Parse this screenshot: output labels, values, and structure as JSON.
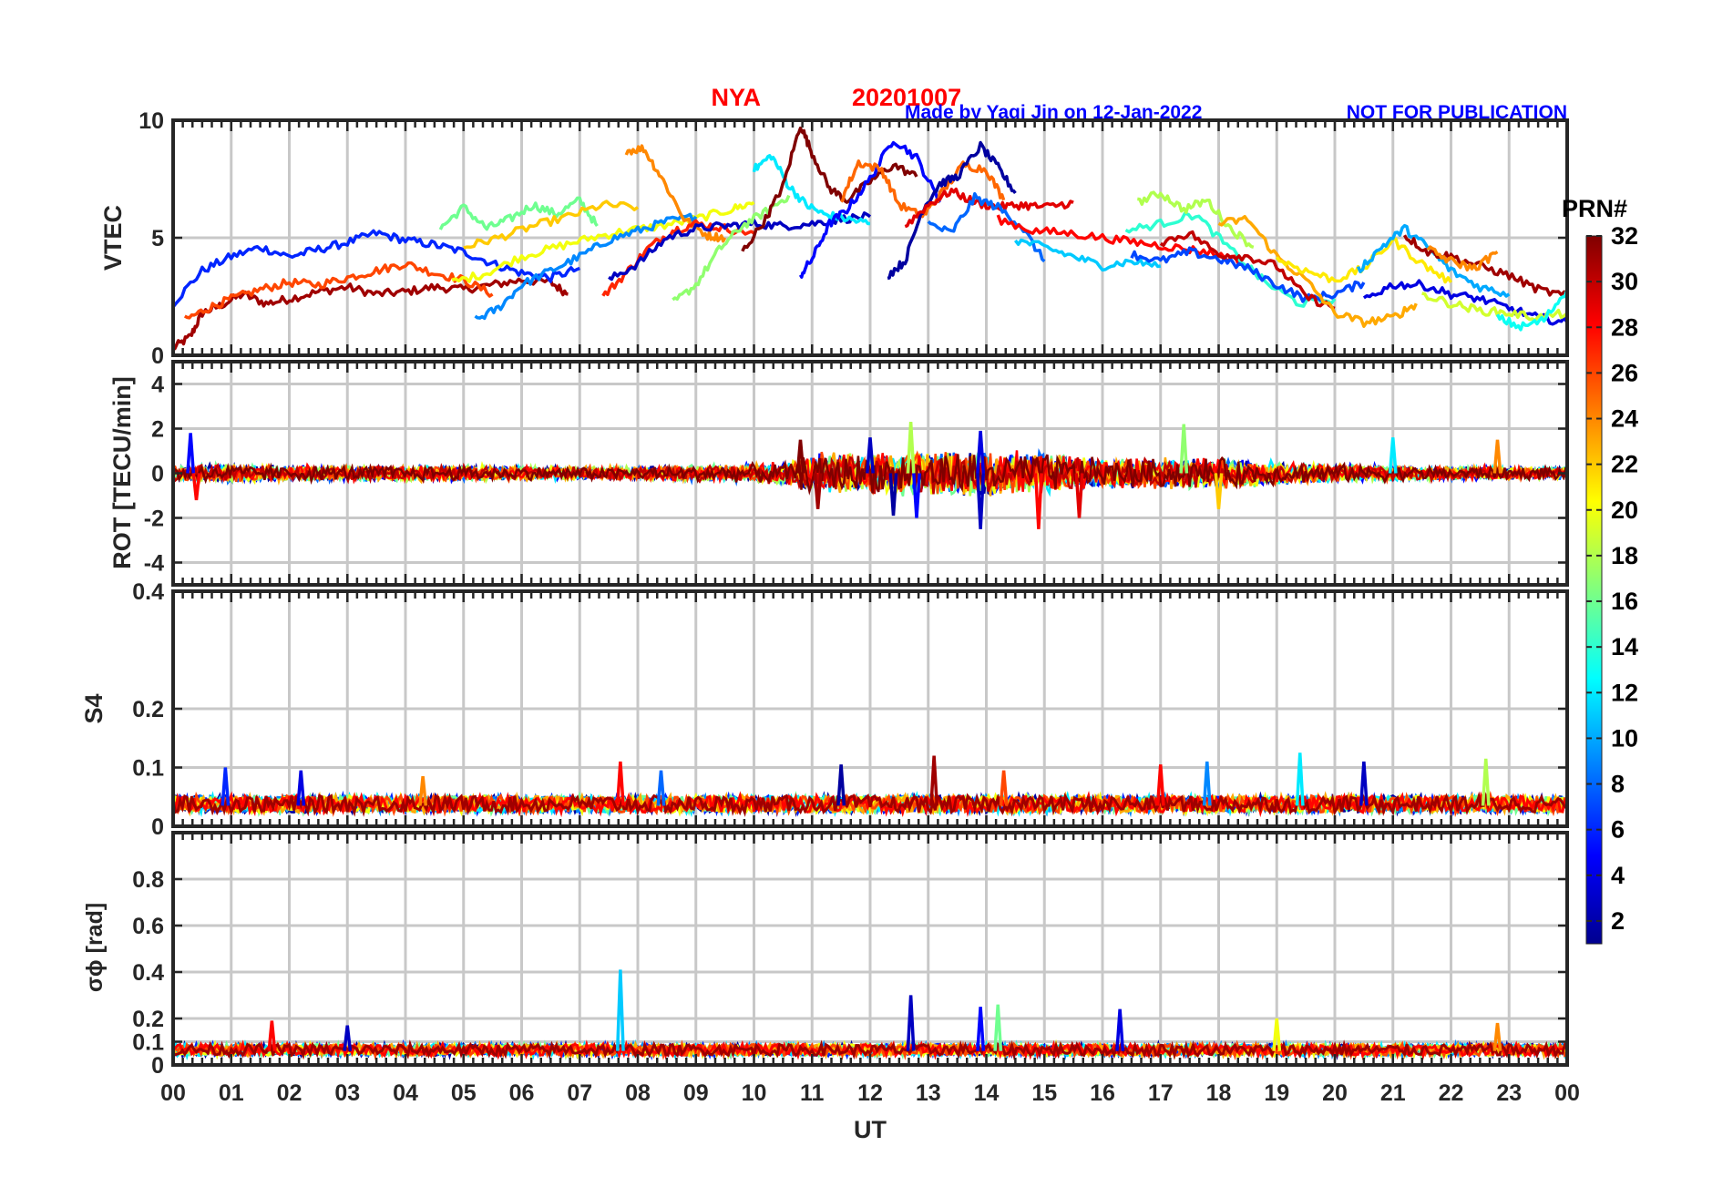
{
  "header": {
    "station": "NYA",
    "date": "20201007",
    "credit": "Made by Yaqi Jin on 12-Jan-2022",
    "notice": "NOT FOR PUBLICATION"
  },
  "colors": {
    "title": "#ff0000",
    "credit": "#0000ff",
    "grid": "#cfcfcf",
    "axis": "#262626"
  },
  "chart_data": [
    {
      "type": "line",
      "ylabel": "VTEC",
      "ylim": [
        0,
        10
      ],
      "yticks": [
        0,
        5,
        10
      ],
      "xlim": [
        0,
        24
      ],
      "grid": true,
      "series": [
        {
          "prn": 31,
          "x": [
            0.0,
            0.3,
            0.5,
            0.8,
            1.2,
            1.6,
            2.0,
            2.5,
            3.0,
            3.5,
            4.0,
            4.5,
            5.0,
            5.5,
            6.0,
            6.5,
            6.8
          ],
          "y": [
            0.3,
            0.8,
            1.8,
            2.1,
            2.6,
            2.2,
            2.4,
            2.7,
            2.9,
            2.6,
            2.7,
            2.9,
            2.8,
            3.0,
            3.2,
            3.1,
            2.6
          ]
        },
        {
          "prn": 6,
          "x": [
            0.0,
            0.5,
            1.0,
            1.5,
            2.0,
            2.5,
            3.0,
            3.5,
            4.0,
            4.5,
            5.0,
            5.5,
            6.0,
            6.5,
            7.0
          ],
          "y": [
            2.2,
            3.6,
            4.2,
            4.6,
            4.2,
            4.5,
            4.8,
            5.2,
            4.9,
            4.7,
            4.4,
            3.9,
            3.5,
            3.3,
            3.7
          ]
        },
        {
          "prn": 26,
          "x": [
            0.2,
            0.6,
            1.0,
            1.5,
            2.0,
            2.5,
            3.0,
            3.5,
            4.0,
            4.5,
            5.0,
            5.5
          ],
          "y": [
            1.5,
            2.0,
            2.4,
            2.8,
            3.1,
            3.0,
            3.3,
            3.6,
            3.9,
            3.5,
            3.2,
            2.6
          ]
        },
        {
          "prn": 16,
          "x": [
            4.6,
            5.0,
            5.4,
            5.8,
            6.2,
            6.6,
            7.0,
            7.3
          ],
          "y": [
            5.4,
            6.3,
            5.4,
            5.8,
            6.4,
            6.0,
            6.6,
            5.5
          ]
        },
        {
          "prn": 20,
          "x": [
            4.8,
            5.4,
            6.0,
            6.6,
            7.2,
            7.8,
            8.4,
            9.0,
            9.6,
            10.0
          ],
          "y": [
            3.1,
            3.5,
            4.2,
            4.6,
            5.0,
            5.3,
            5.5,
            5.8,
            6.2,
            6.5
          ]
        },
        {
          "prn": 22,
          "x": [
            5.0,
            5.6,
            6.2,
            6.8,
            7.4,
            8.0
          ],
          "y": [
            4.6,
            5.0,
            5.5,
            5.9,
            6.4,
            6.3
          ]
        },
        {
          "prn": 9,
          "x": [
            5.2,
            5.6,
            6.0,
            6.5,
            7.0,
            7.5,
            8.0,
            8.5,
            9.0
          ],
          "y": [
            1.5,
            2.0,
            3.0,
            3.6,
            4.2,
            4.9,
            5.3,
            5.7,
            5.9
          ]
        },
        {
          "prn": 24,
          "x": [
            7.8,
            8.1,
            8.4,
            8.8,
            9.2,
            9.5
          ],
          "y": [
            8.7,
            8.8,
            7.6,
            5.8,
            5.1,
            5.0
          ]
        },
        {
          "prn": 27,
          "x": [
            7.4,
            7.8,
            8.2,
            8.6,
            9.0,
            9.5,
            10.0
          ],
          "y": [
            2.5,
            3.5,
            4.6,
            5.3,
            5.6,
            5.4,
            5.2
          ]
        },
        {
          "prn": 3,
          "x": [
            7.5,
            8.0,
            8.5,
            9.0,
            9.5,
            10.0,
            10.5,
            11.0,
            11.5,
            12.0
          ],
          "y": [
            3.2,
            3.9,
            5.0,
            5.4,
            5.5,
            5.6,
            5.5,
            5.6,
            5.8,
            5.9
          ]
        },
        {
          "prn": 17,
          "x": [
            8.6,
            9.0,
            9.4,
            9.8,
            10.2,
            10.6
          ],
          "y": [
            2.2,
            3.0,
            4.5,
            5.5,
            6.1,
            6.8
          ]
        },
        {
          "prn": 12,
          "x": [
            10.0,
            10.3,
            10.6,
            10.9,
            11.2,
            11.6,
            12.0
          ],
          "y": [
            7.9,
            8.5,
            7.2,
            6.4,
            6.0,
            5.8,
            5.6
          ]
        },
        {
          "prn": 32,
          "x": [
            9.8,
            10.2,
            10.5,
            10.8,
            11.0,
            11.3,
            11.6,
            12.0,
            12.4,
            12.8
          ],
          "y": [
            4.4,
            5.8,
            7.2,
            9.8,
            8.6,
            7.1,
            6.6,
            7.4,
            8.1,
            7.6
          ]
        },
        {
          "prn": 5,
          "x": [
            10.8,
            11.0,
            11.3,
            11.6,
            12.0,
            12.4,
            12.8,
            13.2
          ],
          "y": [
            3.4,
            4.1,
            5.6,
            6.2,
            7.5,
            9.2,
            8.4,
            6.5
          ]
        },
        {
          "prn": 25,
          "x": [
            11.5,
            11.8,
            12.2,
            12.5,
            12.9,
            13.2,
            13.6,
            14.0,
            14.3
          ],
          "y": [
            6.6,
            8.2,
            7.9,
            6.4,
            5.9,
            6.8,
            8.1,
            7.9,
            6.6
          ]
        },
        {
          "prn": 2,
          "x": [
            12.3,
            12.6,
            12.9,
            13.2,
            13.5,
            13.9,
            14.2,
            14.5
          ],
          "y": [
            3.4,
            4.0,
            6.2,
            7.3,
            7.6,
            8.9,
            8.0,
            6.9
          ]
        },
        {
          "prn": 29,
          "x": [
            12.6,
            13.0,
            13.4,
            13.8,
            14.2,
            14.6,
            15.0,
            15.5
          ],
          "y": [
            5.5,
            6.4,
            7.0,
            6.5,
            6.3,
            6.4,
            6.3,
            6.5
          ]
        },
        {
          "prn": 8,
          "x": [
            13.0,
            13.4,
            13.8,
            14.2,
            14.6,
            15.0
          ],
          "y": [
            5.6,
            5.2,
            6.7,
            6.3,
            5.5,
            4.0
          ]
        },
        {
          "prn": 11,
          "x": [
            14.5,
            15.0,
            15.5,
            16.0,
            16.5,
            17.0
          ],
          "y": [
            4.9,
            4.6,
            4.2,
            3.8,
            4.0,
            3.8
          ]
        },
        {
          "prn": 28,
          "x": [
            14.2,
            14.8,
            15.4,
            16.0,
            16.6,
            17.2,
            17.8,
            18.4
          ],
          "y": [
            5.8,
            5.3,
            5.2,
            5.0,
            4.8,
            4.6,
            4.4,
            4.0
          ]
        },
        {
          "prn": 14,
          "x": [
            16.4,
            17.0,
            17.6,
            18.2,
            18.8,
            19.4,
            20.0
          ],
          "y": [
            5.3,
            5.6,
            6.0,
            4.5,
            3.1,
            2.2,
            2.4
          ]
        },
        {
          "prn": 18,
          "x": [
            16.6,
            17.0,
            17.4,
            17.8,
            18.2,
            18.6
          ],
          "y": [
            6.5,
            6.9,
            6.2,
            6.6,
            5.4,
            4.6
          ]
        },
        {
          "prn": 7,
          "x": [
            16.5,
            17.0,
            17.5,
            18.0,
            18.5,
            19.0,
            19.5,
            20.0,
            20.5
          ],
          "y": [
            4.3,
            4.0,
            4.4,
            4.1,
            3.7,
            3.0,
            2.4,
            2.6,
            3.1
          ]
        },
        {
          "prn": 30,
          "x": [
            17.0,
            17.5,
            18.0,
            18.5,
            19.0,
            19.5,
            20.0
          ],
          "y": [
            4.8,
            5.2,
            4.3,
            4.2,
            3.8,
            2.5,
            2.0
          ]
        },
        {
          "prn": 23,
          "x": [
            18.0,
            18.5,
            19.0,
            19.5,
            20.0,
            20.5,
            21.0,
            21.4
          ],
          "y": [
            5.6,
            5.8,
            4.2,
            3.2,
            1.8,
            1.4,
            1.6,
            2.2
          ]
        },
        {
          "prn": 21,
          "x": [
            19.0,
            19.5,
            20.0,
            20.5,
            21.0,
            21.5,
            22.0
          ],
          "y": [
            4.1,
            3.6,
            3.2,
            3.7,
            4.9,
            3.9,
            3.1
          ]
        },
        {
          "prn": 10,
          "x": [
            20.4,
            20.8,
            21.2,
            21.6,
            22.0,
            22.5,
            23.0
          ],
          "y": [
            3.6,
            4.6,
            5.4,
            4.6,
            3.6,
            2.9,
            2.6
          ]
        },
        {
          "prn": 31,
          "x": [
            21.2,
            21.6,
            22.0,
            22.5,
            23.0,
            23.5,
            24.0
          ],
          "y": [
            5.1,
            4.4,
            4.2,
            3.8,
            3.4,
            2.8,
            2.5
          ]
        },
        {
          "prn": 4,
          "x": [
            20.5,
            21.0,
            21.5,
            22.0,
            22.5,
            23.0,
            23.5,
            24.0
          ],
          "y": [
            2.4,
            3.0,
            3.0,
            2.6,
            2.4,
            2.0,
            1.6,
            1.4
          ]
        },
        {
          "prn": 19,
          "x": [
            21.5,
            22.0,
            22.5,
            23.0,
            23.5,
            24.0
          ],
          "y": [
            2.6,
            2.2,
            1.9,
            1.8,
            1.6,
            1.8
          ]
        },
        {
          "prn": 24,
          "x": [
            21.6,
            22.0,
            22.4,
            22.8
          ],
          "y": [
            4.5,
            4.0,
            3.7,
            4.4
          ]
        },
        {
          "prn": 13,
          "x": [
            22.8,
            23.2,
            23.6,
            24.0
          ],
          "y": [
            1.6,
            1.2,
            1.5,
            2.8
          ]
        }
      ]
    },
    {
      "type": "line",
      "ylabel": "ROT [TECU/min]",
      "ylim": [
        -5,
        5
      ],
      "yticks": [
        -4,
        -2,
        0,
        2,
        4
      ],
      "xlim": [
        0,
        24
      ],
      "grid": true,
      "noise_band": [
        {
          "x": [
            0,
            1,
            2,
            3,
            4,
            5,
            6,
            7,
            8,
            9,
            10,
            10.5,
            11,
            12,
            13,
            14,
            15,
            16,
            17,
            18,
            19,
            20,
            21,
            22,
            23,
            24
          ],
          "amplitude": [
            0.4,
            0.4,
            0.35,
            0.35,
            0.35,
            0.35,
            0.3,
            0.3,
            0.3,
            0.35,
            0.4,
            0.5,
            0.9,
            0.9,
            1.0,
            1.0,
            0.9,
            0.7,
            0.7,
            0.7,
            0.5,
            0.4,
            0.35,
            0.3,
            0.3,
            0.3
          ]
        }
      ],
      "spikes": [
        {
          "x": 0.3,
          "y": 1.8,
          "prn": 5
        },
        {
          "x": 0.4,
          "y": -1.2,
          "prn": 28
        },
        {
          "x": 10.8,
          "y": 1.5,
          "prn": 32
        },
        {
          "x": 11.1,
          "y": -1.6,
          "prn": 31
        },
        {
          "x": 12.0,
          "y": 1.6,
          "prn": 3
        },
        {
          "x": 12.4,
          "y": -1.9,
          "prn": 2
        },
        {
          "x": 12.7,
          "y": 2.3,
          "prn": 18
        },
        {
          "x": 12.8,
          "y": -2.0,
          "prn": 5
        },
        {
          "x": 13.9,
          "y": -2.5,
          "prn": 3
        },
        {
          "x": 13.9,
          "y": 1.9,
          "prn": 4
        },
        {
          "x": 14.9,
          "y": -2.5,
          "prn": 28
        },
        {
          "x": 15.6,
          "y": -2.0,
          "prn": 29
        },
        {
          "x": 17.4,
          "y": 2.2,
          "prn": 17
        },
        {
          "x": 18.0,
          "y": -1.6,
          "prn": 22
        },
        {
          "x": 21.0,
          "y": 1.6,
          "prn": 12
        },
        {
          "x": 22.8,
          "y": 1.5,
          "prn": 24
        }
      ]
    },
    {
      "type": "line",
      "ylabel": "S4",
      "ylim": [
        0,
        0.4
      ],
      "yticks": [
        0,
        0.1,
        0.2,
        0.4
      ],
      "xlim": [
        0,
        24
      ],
      "grid": true,
      "baseline": 0.035,
      "spikes": [
        {
          "x": 0.9,
          "y": 0.1,
          "prn": 6
        },
        {
          "x": 2.2,
          "y": 0.095,
          "prn": 4
        },
        {
          "x": 4.3,
          "y": 0.085,
          "prn": 24
        },
        {
          "x": 7.7,
          "y": 0.11,
          "prn": 28
        },
        {
          "x": 8.4,
          "y": 0.095,
          "prn": 8
        },
        {
          "x": 11.5,
          "y": 0.105,
          "prn": 2
        },
        {
          "x": 13.1,
          "y": 0.12,
          "prn": 31
        },
        {
          "x": 14.3,
          "y": 0.095,
          "prn": 26
        },
        {
          "x": 17.0,
          "y": 0.105,
          "prn": 28
        },
        {
          "x": 17.8,
          "y": 0.11,
          "prn": 9
        },
        {
          "x": 19.4,
          "y": 0.125,
          "prn": 12
        },
        {
          "x": 20.5,
          "y": 0.11,
          "prn": 3
        },
        {
          "x": 22.6,
          "y": 0.115,
          "prn": 18
        }
      ]
    },
    {
      "type": "line",
      "ylabel": "σϕ [rad]",
      "ylim": [
        0,
        1
      ],
      "yticks": [
        0,
        0.1,
        0.2,
        0.4,
        0.6,
        0.8
      ],
      "xlim": [
        0,
        24
      ],
      "grid": true,
      "baseline": 0.06,
      "spikes": [
        {
          "x": 1.7,
          "y": 0.19,
          "prn": 28
        },
        {
          "x": 3.0,
          "y": 0.17,
          "prn": 3
        },
        {
          "x": 7.7,
          "y": 0.41,
          "prn": 11
        },
        {
          "x": 12.7,
          "y": 0.3,
          "prn": 3
        },
        {
          "x": 13.9,
          "y": 0.25,
          "prn": 5
        },
        {
          "x": 14.2,
          "y": 0.26,
          "prn": 16
        },
        {
          "x": 16.3,
          "y": 0.24,
          "prn": 4
        },
        {
          "x": 19.0,
          "y": 0.2,
          "prn": 20
        },
        {
          "x": 22.8,
          "y": 0.18,
          "prn": 24
        }
      ]
    }
  ],
  "xaxis": {
    "label": "UT",
    "ticks": [
      "00",
      "01",
      "02",
      "03",
      "04",
      "05",
      "06",
      "07",
      "08",
      "09",
      "10",
      "11",
      "12",
      "13",
      "14",
      "15",
      "16",
      "17",
      "18",
      "19",
      "20",
      "21",
      "22",
      "23",
      "00"
    ]
  },
  "colorbar": {
    "label": "PRN#",
    "range": [
      1,
      32
    ],
    "ticks": [
      "2",
      "4",
      "6",
      "8",
      "10",
      "12",
      "14",
      "16",
      "18",
      "20",
      "22",
      "24",
      "26",
      "28",
      "30",
      "32"
    ],
    "colormap": "jet"
  }
}
